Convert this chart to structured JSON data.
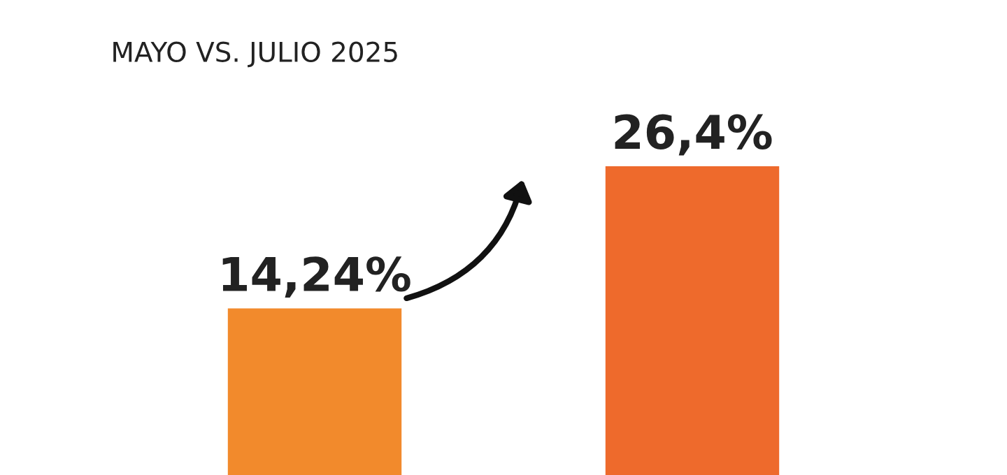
{
  "chart_data": {
    "type": "bar",
    "title": "MAYO VS. JULIO 2025",
    "categories": [
      null,
      null
    ],
    "values": [
      14.24,
      26.4
    ],
    "value_labels": [
      "14,24%",
      "26,4%"
    ],
    "colors": [
      "#f28a2c",
      "#ee6a2c"
    ]
  }
}
